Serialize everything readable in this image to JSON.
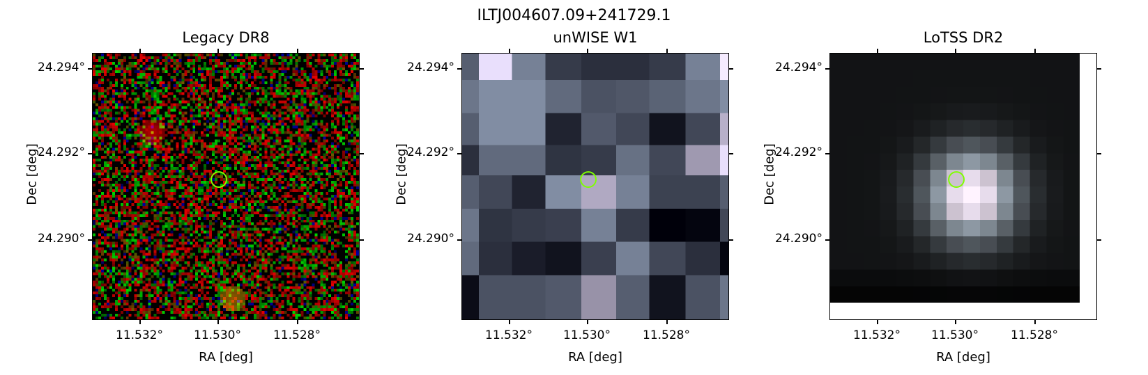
{
  "figure": {
    "title": "ILTJ004607.09+241729.1"
  },
  "panels": [
    {
      "title": "Legacy DR8",
      "xlabel": "RA [deg]",
      "ylabel": "Dec [deg]",
      "xticks": [
        "11.532°",
        "11.530°",
        "11.528°"
      ],
      "yticks": [
        "24.294°",
        "24.292°",
        "24.290°"
      ],
      "image": "rgb noise",
      "marker_color": "#7fff00"
    },
    {
      "title": "unWISE W1",
      "xlabel": "RA [deg]",
      "ylabel": "Dec [deg]",
      "xticks": [
        "11.532°",
        "11.530°",
        "11.528°"
      ],
      "yticks": [
        "24.294°",
        "24.292°",
        "24.290°"
      ],
      "image": "bone",
      "marker_color": "#7fff00"
    },
    {
      "title": "LoTSS DR2",
      "xlabel": "RA [deg]",
      "ylabel": "Dec [deg]",
      "xticks": [
        "11.532°",
        "11.530°",
        "11.528°"
      ],
      "yticks": [
        "24.294°",
        "24.292°",
        "24.290°"
      ],
      "image": "bone",
      "marker_color": "#7fff00"
    }
  ]
}
